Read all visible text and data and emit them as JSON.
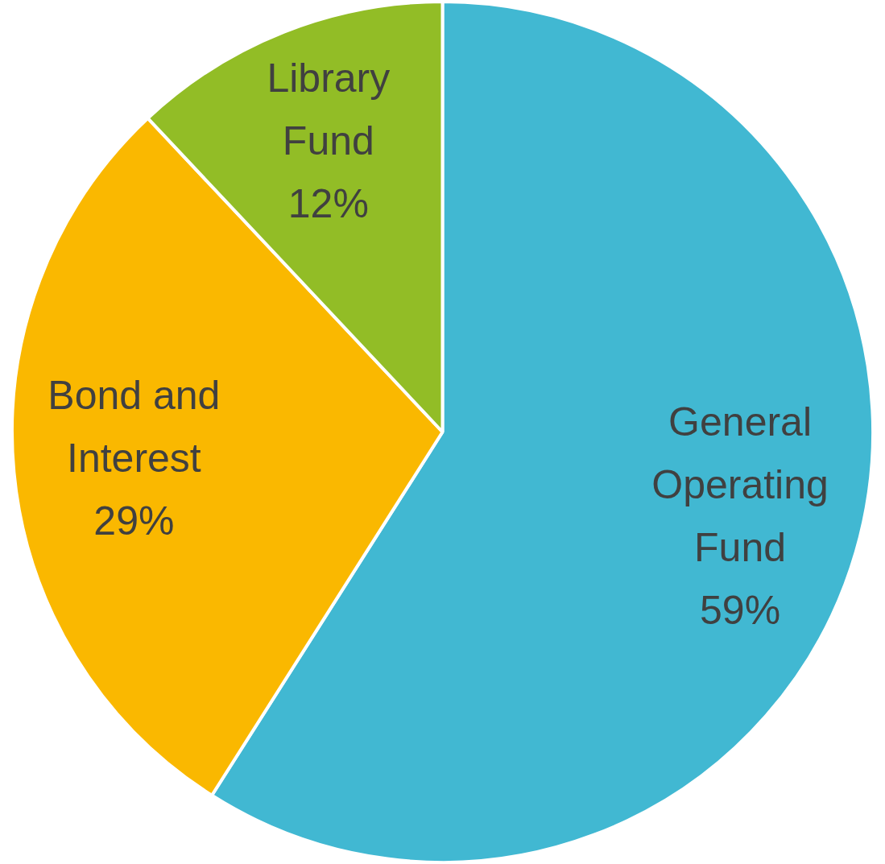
{
  "chart_data": {
    "type": "pie",
    "categories": [
      "General Operating Fund",
      "Bond and Interest",
      "Library Fund"
    ],
    "values": [
      59,
      29,
      12
    ],
    "value_labels": [
      "59%",
      "29%",
      "12%"
    ],
    "colors": [
      "#41b8d2",
      "#fab800",
      "#92bd26"
    ],
    "legend": false
  }
}
